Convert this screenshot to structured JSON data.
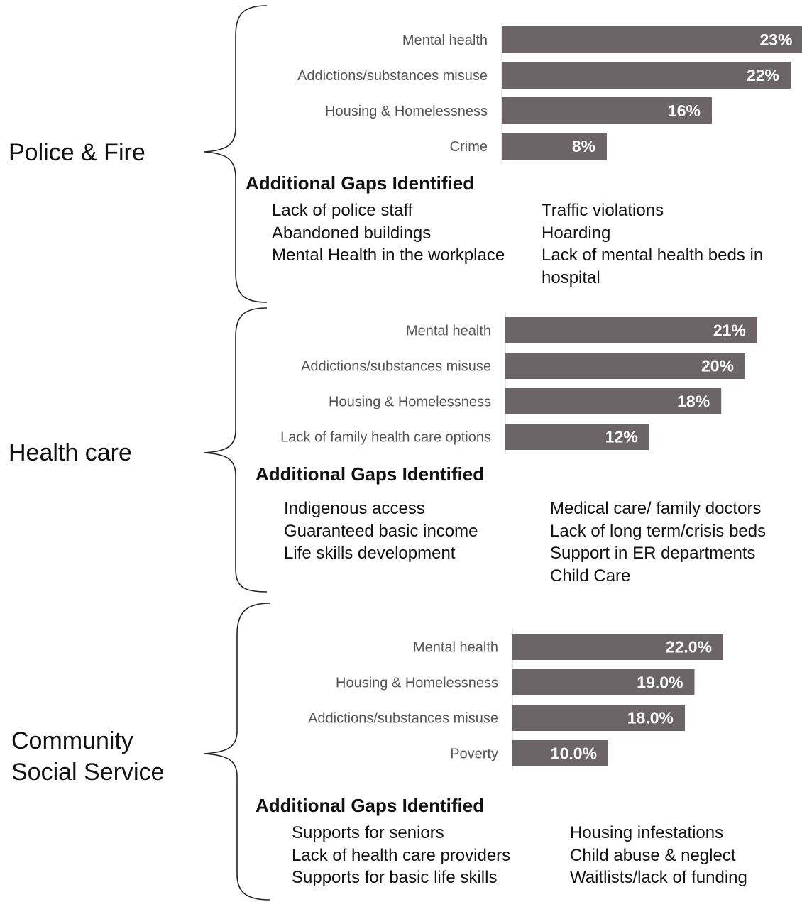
{
  "sections": [
    {
      "sector": "Police & Fire",
      "gaps_heading": "Additional Gaps Identified",
      "gaps_left": [
        "Lack of police staff",
        "Abandoned buildings",
        "Mental Health in the workplace"
      ],
      "gaps_right": [
        "Traffic violations",
        "Hoarding",
        "Lack of mental health beds in hospital"
      ]
    },
    {
      "sector": "Health care",
      "gaps_heading": "Additional Gaps Identified",
      "gaps_left": [
        "Indigenous access",
        "Guaranteed basic income",
        "Life skills development"
      ],
      "gaps_right": [
        "Medical care/ family doctors",
        "Lack of long term/crisis beds",
        "Support in ER departments",
        "Child Care"
      ]
    },
    {
      "sector": "Community Social Service",
      "sector_lines": [
        "Community",
        "Social Service"
      ],
      "gaps_heading": "Additional Gaps Identified",
      "gaps_left": [
        "Supports for seniors",
        "Lack of health care providers",
        "Supports for basic life skills"
      ],
      "gaps_right": [
        "Housing infestations",
        "Child abuse & neglect",
        "Waitlists/lack of funding"
      ]
    }
  ],
  "colors": {
    "bar": "#6b6567",
    "bar_label": "#ffffff",
    "category_label": "#555555"
  },
  "chart_data": [
    {
      "type": "bar",
      "orientation": "horizontal",
      "categories": [
        "Mental health",
        "Addictions/substances misuse",
        "Housing & Homelessness",
        "Crime"
      ],
      "values": [
        23,
        22,
        16,
        8
      ],
      "value_labels": [
        "23%",
        "22%",
        "16%",
        "8%"
      ],
      "title": "",
      "xlabel": "",
      "ylabel": "",
      "xlim": [
        0,
        23
      ],
      "grid": false
    },
    {
      "type": "bar",
      "orientation": "horizontal",
      "categories": [
        "Mental health",
        "Addictions/substances misuse",
        "Housing & Homelessness",
        "Lack of family health care options"
      ],
      "values": [
        21,
        20,
        18,
        12
      ],
      "value_labels": [
        "21%",
        "20%",
        "18%",
        "12%"
      ],
      "title": "",
      "xlabel": "",
      "ylabel": "",
      "xlim": [
        0,
        23
      ],
      "grid": false
    },
    {
      "type": "bar",
      "orientation": "horizontal",
      "categories": [
        "Mental health",
        "Housing & Homelessness",
        "Addictions/substances misuse",
        "Poverty"
      ],
      "values": [
        22.0,
        19.0,
        18.0,
        10.0
      ],
      "value_labels": [
        "22.0%",
        "19.0%",
        "18.0%",
        "10.0%"
      ],
      "title": "",
      "xlabel": "",
      "ylabel": "",
      "xlim": [
        0,
        23
      ],
      "grid": false
    }
  ]
}
